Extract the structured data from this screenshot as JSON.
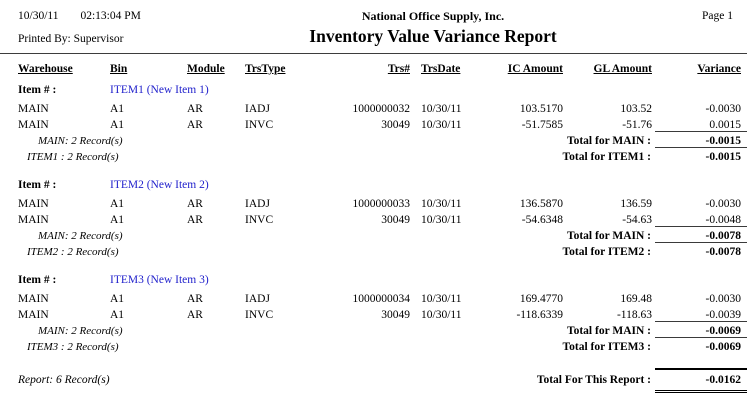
{
  "page_header": {
    "date": "10/30/11",
    "time": "02:13:04 PM",
    "printed_by": "Printed By: Supervisor",
    "company": "National Office Supply, Inc.",
    "report_title": "Inventory Value Variance Report",
    "page_label": "Page 1"
  },
  "table": {
    "columns": [
      "Warehouse",
      "Bin",
      "Module",
      "TrsType",
      "Trs#",
      "TrsDate",
      "IC Amount",
      "GL Amount",
      "Variance"
    ],
    "item_row_label": "Item # :",
    "groups": [
      {
        "item": "ITEM1 (New Item 1)",
        "rows": [
          {
            "warehouse": "MAIN",
            "bin": "A1",
            "module": "AR",
            "trs_type": "IADJ",
            "trs_no": "1000000032",
            "trs_date": "10/30/11",
            "ic_amount": "103.5170",
            "gl_amount": "103.52",
            "variance": "-0.0030"
          },
          {
            "warehouse": "MAIN",
            "bin": "A1",
            "module": "AR",
            "trs_type": "INVC",
            "trs_no": "30049",
            "trs_date": "10/30/11",
            "ic_amount": "-51.7585",
            "gl_amount": "-51.76",
            "variance": "0.0015"
          }
        ],
        "warehouse_summary": {
          "count_label": "MAIN: 2 Record(s)",
          "total_label": "Total for MAIN :",
          "total_value": "-0.0015"
        },
        "item_summary": {
          "count_label": "ITEM1 : 2 Record(s)",
          "total_label": "Total for ITEM1 :",
          "total_value": "-0.0015"
        }
      },
      {
        "item": "ITEM2 (New Item 2)",
        "rows": [
          {
            "warehouse": "MAIN",
            "bin": "A1",
            "module": "AR",
            "trs_type": "IADJ",
            "trs_no": "1000000033",
            "trs_date": "10/30/11",
            "ic_amount": "136.5870",
            "gl_amount": "136.59",
            "variance": "-0.0030"
          },
          {
            "warehouse": "MAIN",
            "bin": "A1",
            "module": "AR",
            "trs_type": "INVC",
            "trs_no": "30049",
            "trs_date": "10/30/11",
            "ic_amount": "-54.6348",
            "gl_amount": "-54.63",
            "variance": "-0.0048"
          }
        ],
        "warehouse_summary": {
          "count_label": "MAIN: 2 Record(s)",
          "total_label": "Total for MAIN :",
          "total_value": "-0.0078"
        },
        "item_summary": {
          "count_label": "ITEM2 : 2 Record(s)",
          "total_label": "Total for ITEM2 :",
          "total_value": "-0.0078"
        }
      },
      {
        "item": "ITEM3 (New Item 3)",
        "rows": [
          {
            "warehouse": "MAIN",
            "bin": "A1",
            "module": "AR",
            "trs_type": "IADJ",
            "trs_no": "1000000034",
            "trs_date": "10/30/11",
            "ic_amount": "169.4770",
            "gl_amount": "169.48",
            "variance": "-0.0030"
          },
          {
            "warehouse": "MAIN",
            "bin": "A1",
            "module": "AR",
            "trs_type": "INVC",
            "trs_no": "30049",
            "trs_date": "10/30/11",
            "ic_amount": "-118.6339",
            "gl_amount": "-118.63",
            "variance": "-0.0039"
          }
        ],
        "warehouse_summary": {
          "count_label": "MAIN: 2 Record(s)",
          "total_label": "Total for MAIN :",
          "total_value": "-0.0069"
        },
        "item_summary": {
          "count_label": "ITEM3 : 2 Record(s)",
          "total_label": "Total for ITEM3 :",
          "total_value": "-0.0069"
        }
      }
    ],
    "report_summary": {
      "count_label": "Report: 6 Record(s)",
      "total_label": "Total For This Report :",
      "total_value": "-0.0162"
    }
  },
  "colors": {
    "item_link": "#2222CC",
    "rule": "#3d3d3d"
  }
}
